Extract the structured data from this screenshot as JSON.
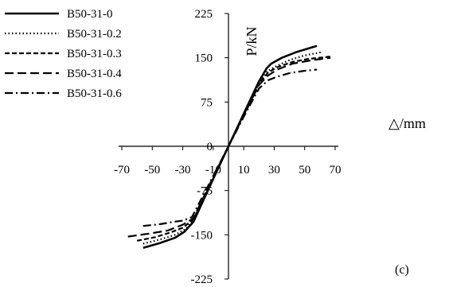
{
  "chart_data": {
    "type": "line",
    "panel_label": "(c)",
    "ylabel": "P/kN",
    "xlabel": "△/mm",
    "xlim": [
      -70,
      70
    ],
    "ylim": [
      -225,
      225
    ],
    "x_ticks": [
      -70,
      -50,
      -30,
      -10,
      10,
      30,
      50,
      70
    ],
    "y_ticks": [
      -225,
      -150,
      -75,
      0,
      75,
      150,
      225
    ],
    "legend_position": "top-left",
    "series": [
      {
        "name": "B50-31-0",
        "style": "solid",
        "color": "#000000",
        "points": [
          [
            -56,
            -172
          ],
          [
            -45,
            -164
          ],
          [
            -35,
            -155
          ],
          [
            -29,
            -145
          ],
          [
            -23,
            -128
          ],
          [
            -10,
            -55
          ],
          [
            0,
            0
          ],
          [
            10,
            55
          ],
          [
            20,
            110
          ],
          [
            25,
            132
          ],
          [
            28,
            140
          ],
          [
            35,
            150
          ],
          [
            45,
            160
          ],
          [
            58,
            170
          ]
        ]
      },
      {
        "name": "B50-31-0.2",
        "style": "dotted",
        "color": "#000000",
        "points": [
          [
            -56,
            -165
          ],
          [
            -45,
            -158
          ],
          [
            -35,
            -150
          ],
          [
            -28,
            -140
          ],
          [
            -23,
            -125
          ],
          [
            -10,
            -54
          ],
          [
            0,
            0
          ],
          [
            10,
            54
          ],
          [
            20,
            108
          ],
          [
            25,
            126
          ],
          [
            30,
            134
          ],
          [
            40,
            146
          ],
          [
            50,
            154
          ],
          [
            62,
            160
          ]
        ]
      },
      {
        "name": "B50-31-0.3",
        "style": "short-dash",
        "color": "#000000",
        "points": [
          [
            -60,
            -160
          ],
          [
            -48,
            -154
          ],
          [
            -38,
            -146
          ],
          [
            -30,
            -138
          ],
          [
            -23,
            -124
          ],
          [
            -10,
            -53
          ],
          [
            0,
            0
          ],
          [
            10,
            53
          ],
          [
            20,
            106
          ],
          [
            26,
            125
          ],
          [
            32,
            134
          ],
          [
            42,
            143
          ],
          [
            52,
            148
          ],
          [
            67,
            152
          ]
        ]
      },
      {
        "name": "B50-31-0.4",
        "style": "long-dash",
        "color": "#000000",
        "points": [
          [
            -66,
            -153
          ],
          [
            -52,
            -148
          ],
          [
            -40,
            -143
          ],
          [
            -30,
            -133
          ],
          [
            -23,
            -122
          ],
          [
            -10,
            -52
          ],
          [
            0,
            0
          ],
          [
            10,
            52
          ],
          [
            20,
            104
          ],
          [
            26,
            120
          ],
          [
            32,
            130
          ],
          [
            42,
            140
          ],
          [
            55,
            146
          ],
          [
            67,
            150
          ]
        ]
      },
      {
        "name": "B50-31-0.6",
        "style": "dash-dot",
        "color": "#000000",
        "points": [
          [
            -56,
            -135
          ],
          [
            -45,
            -132
          ],
          [
            -36,
            -128
          ],
          [
            -30,
            -126
          ],
          [
            -24,
            -120
          ],
          [
            -10,
            -50
          ],
          [
            0,
            0
          ],
          [
            10,
            50
          ],
          [
            20,
            98
          ],
          [
            26,
            112
          ],
          [
            32,
            118
          ],
          [
            40,
            124
          ],
          [
            50,
            128
          ],
          [
            58,
            130
          ]
        ]
      }
    ]
  }
}
